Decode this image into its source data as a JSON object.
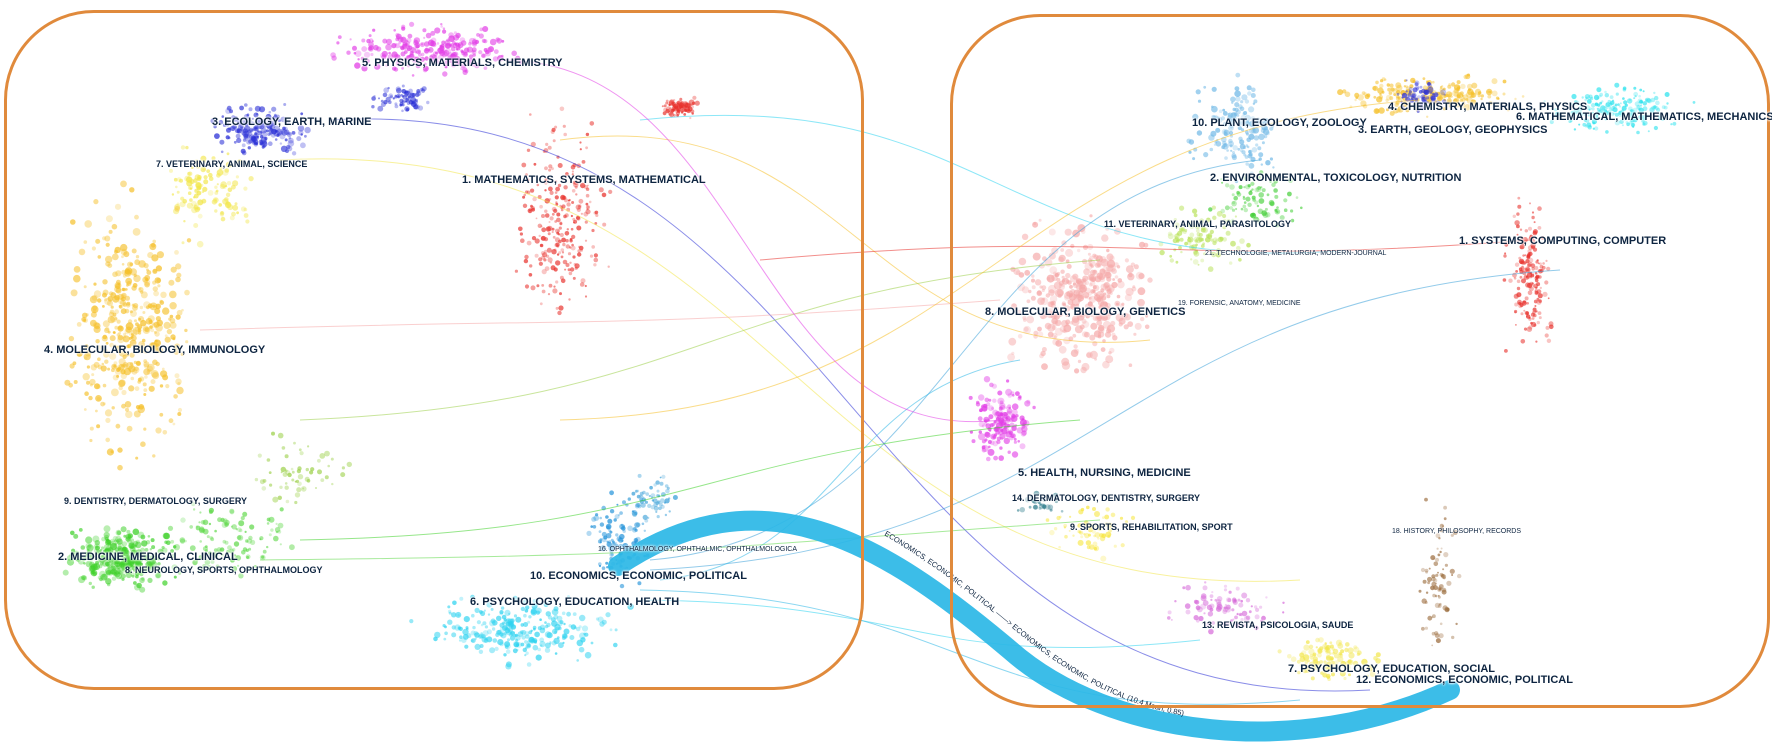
{
  "colors": {
    "frame": "#e08a3c",
    "label_text": "#0d2440",
    "main_flow": "#2bb7e6"
  },
  "left_map": {
    "clusters": [
      {
        "id": "l1",
        "label": "1. MATHEMATICS, SYSTEMS, MATHEMATICAL",
        "color": "#e8312c"
      },
      {
        "id": "l2",
        "label": "2. MEDICINE, MEDICAL, CLINICAL",
        "color": "#3fd12a"
      },
      {
        "id": "l3",
        "label": "3. ECOLOGY, EARTH, MARINE",
        "color": "#2a2fd6"
      },
      {
        "id": "l4",
        "label": "4. MOLECULAR, BIOLOGY, IMMUNOLOGY",
        "color": "#f5c02a"
      },
      {
        "id": "l5",
        "label": "5. PHYSICS, MATERIALS, CHEMISTRY",
        "color": "#e23de6"
      },
      {
        "id": "l6",
        "label": "6. PSYCHOLOGY, EDUCATION, HEALTH",
        "color": "#2fd3f0"
      },
      {
        "id": "l7",
        "label": "7. VETERINARY, ANIMAL, SCIENCE",
        "color": "#f2e64a"
      },
      {
        "id": "l8",
        "label": "8. NEUROLOGY, SPORTS, OPHTHALMOLOGY",
        "color": "#5ed848"
      },
      {
        "id": "l9",
        "label": "9. DENTISTRY, DERMATOLOGY, SURGERY",
        "color": "#9cd04a"
      },
      {
        "id": "l10",
        "label": "10. ECONOMICS, ECONOMIC, POLITICAL",
        "color": "#1b8fd8"
      },
      {
        "id": "l16",
        "label": "16. OPHTHALMOLOGY, OPHTHALMIC, OPHTHALMOLOGICA",
        "color": "#3aa0d8"
      }
    ]
  },
  "right_map": {
    "clusters": [
      {
        "id": "r1",
        "label": "1. SYSTEMS, COMPUTING, COMPUTER",
        "color": "#e8312c"
      },
      {
        "id": "r2",
        "label": "2. ENVIRONMENTAL, TOXICOLOGY, NUTRITION",
        "color": "#44cf38"
      },
      {
        "id": "r3",
        "label": "3. EARTH, GEOLOGY, GEOPHYSICS",
        "color": "#2a2fd6"
      },
      {
        "id": "r4",
        "label": "4. CHEMISTRY, MATERIALS, PHYSICS",
        "color": "#f5c02a"
      },
      {
        "id": "r5",
        "label": "5. HEALTH, NURSING, MEDICINE",
        "color": "#e23de6"
      },
      {
        "id": "r6",
        "label": "6. MATHEMATICAL, MATHEMATICS, MECHANICS",
        "color": "#2fe3ee"
      },
      {
        "id": "r7",
        "label": "7. PSYCHOLOGY, EDUCATION, SOCIAL",
        "color": "#f2e64a"
      },
      {
        "id": "r8",
        "label": "8. MOLECULAR, BIOLOGY, GENETICS",
        "color": "#f5a8a8"
      },
      {
        "id": "r9",
        "label": "9. SPORTS, REHABILITATION, SPORT",
        "color": "#f7e640"
      },
      {
        "id": "r10",
        "label": "10. PLANT, ECOLOGY, ZOOLOGY",
        "color": "#6fb8e6"
      },
      {
        "id": "r11",
        "label": "11. VETERINARY, ANIMAL, PARASITOLOGY",
        "color": "#b9e25a"
      },
      {
        "id": "r12",
        "label": "12. ECONOMICS, ECONOMIC, POLITICAL",
        "color": "#1b6fd0"
      },
      {
        "id": "r13",
        "label": "13. REVISTA, PSICOLOGIA, SAUDE",
        "color": "#d66ad9"
      },
      {
        "id": "r14",
        "label": "14. DERMATOLOGY, DENTISTRY, SURGERY",
        "color": "#2a7a8a"
      },
      {
        "id": "r18",
        "label": "18. HISTORY, PHILOSOPHY, RECORDS",
        "color": "#9a6a3a"
      },
      {
        "id": "r19",
        "label": "19. FORENSIC, ANATOMY, MEDICINE",
        "color": "#8aa"
      },
      {
        "id": "r21",
        "label": "21. TECHNOLOGIE, METALURGIA, MODERN-JOURNAL",
        "color": "#8aa"
      }
    ]
  },
  "flow": {
    "label": "ECONOMICS, ECONOMIC, POLITICAL ——> ECONOMICS, ECONOMIC, POLITICAL (10.4 Mean, 0.85)"
  }
}
